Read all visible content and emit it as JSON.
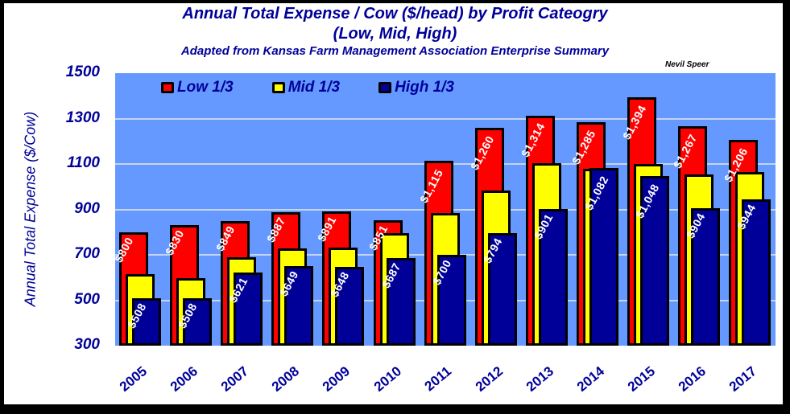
{
  "chart_data": {
    "type": "bar",
    "title": "Annual Total Expense / Cow ($/head) by Profit Cateogry",
    "subtitle": "(Low, Mid, High)",
    "subtitle2": "Adapted from Kansas Farm Management Association Enterprise Summary",
    "credit": "Nevil Speer",
    "xlabel": "",
    "ylabel": "Annual Total Expense ($/Cow)",
    "ylim": [
      300,
      1500
    ],
    "yticks": [
      "1500",
      "1300",
      "1100",
      "900",
      "700",
      "500",
      "300"
    ],
    "grid": true,
    "legend_position": "top-left inside plot",
    "categories": [
      "2005",
      "2006",
      "2007",
      "2008",
      "2009",
      "2010",
      "2011",
      "2012",
      "2013",
      "2014",
      "2015",
      "2016",
      "2017"
    ],
    "series": [
      {
        "name": "Low 1/3",
        "color": "#ff0000",
        "values": [
          800,
          830,
          849,
          887,
          891,
          851,
          1115,
          1260,
          1314,
          1285,
          1394,
          1267,
          1206
        ],
        "labels": [
          "$800",
          "$830",
          "$849",
          "$887",
          "$891",
          "$851",
          "$1,115",
          "$1,260",
          "$1,314",
          "$1,285",
          "$1,394",
          "$1,267",
          "$1,206"
        ]
      },
      {
        "name": "Mid 1/3",
        "color": "#ffff00",
        "values": [
          615,
          598,
          690,
          728,
          732,
          795,
          884,
          982,
          1104,
          1078,
          1100,
          1055,
          1065
        ],
        "labels": []
      },
      {
        "name": "High 1/3",
        "color": "#000099",
        "values": [
          508,
          508,
          621,
          649,
          648,
          687,
          700,
          794,
          901,
          1082,
          1048,
          904,
          944
        ],
        "labels": [
          "$508",
          "$508",
          "$621",
          "$649",
          "$648",
          "$687",
          "$700",
          "$794",
          "$901",
          "$1,082",
          "$1,048",
          "$904",
          "$944"
        ]
      }
    ]
  },
  "legend": {
    "low": "Low 1/3",
    "mid": "Mid 1/3",
    "high": "High 1/3"
  },
  "colors": {
    "plot_bg": "#6699ff",
    "low": "#ff0000",
    "mid": "#ffff00",
    "high": "#000099",
    "text": "#000099"
  }
}
